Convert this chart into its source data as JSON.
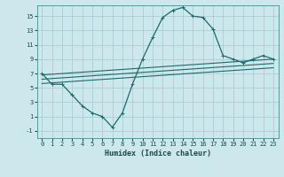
{
  "title": "",
  "xlabel": "Humidex (Indice chaleur)",
  "xlim": [
    -0.5,
    23.5
  ],
  "ylim": [
    -2.0,
    16.5
  ],
  "yticks": [
    -1,
    1,
    3,
    5,
    7,
    9,
    11,
    13,
    15
  ],
  "xticks": [
    0,
    1,
    2,
    3,
    4,
    5,
    6,
    7,
    8,
    9,
    10,
    11,
    12,
    13,
    14,
    15,
    16,
    17,
    18,
    19,
    20,
    21,
    22,
    23
  ],
  "bg_color": "#cde8ec",
  "grid_color": "#aacdd4",
  "line_color": "#1a6b6b",
  "main_curve_x": [
    0,
    1,
    2,
    3,
    4,
    5,
    6,
    7,
    8,
    9,
    10,
    11,
    12,
    13,
    14,
    15,
    16,
    17,
    18,
    19,
    20,
    21,
    22,
    23
  ],
  "main_curve_y": [
    7,
    5.5,
    5.5,
    4,
    2.5,
    1.5,
    1,
    -0.5,
    1.5,
    5.5,
    9,
    12,
    14.8,
    15.8,
    16.2,
    15.0,
    14.8,
    13.2,
    9.5,
    9.0,
    8.5,
    9.0,
    9.5,
    9.0
  ],
  "line1_x": [
    0,
    23
  ],
  "line1_y": [
    6.8,
    9.0
  ],
  "line2_x": [
    0,
    23
  ],
  "line2_y": [
    6.2,
    8.4
  ],
  "line3_x": [
    0,
    23
  ],
  "line3_y": [
    5.6,
    7.8
  ]
}
